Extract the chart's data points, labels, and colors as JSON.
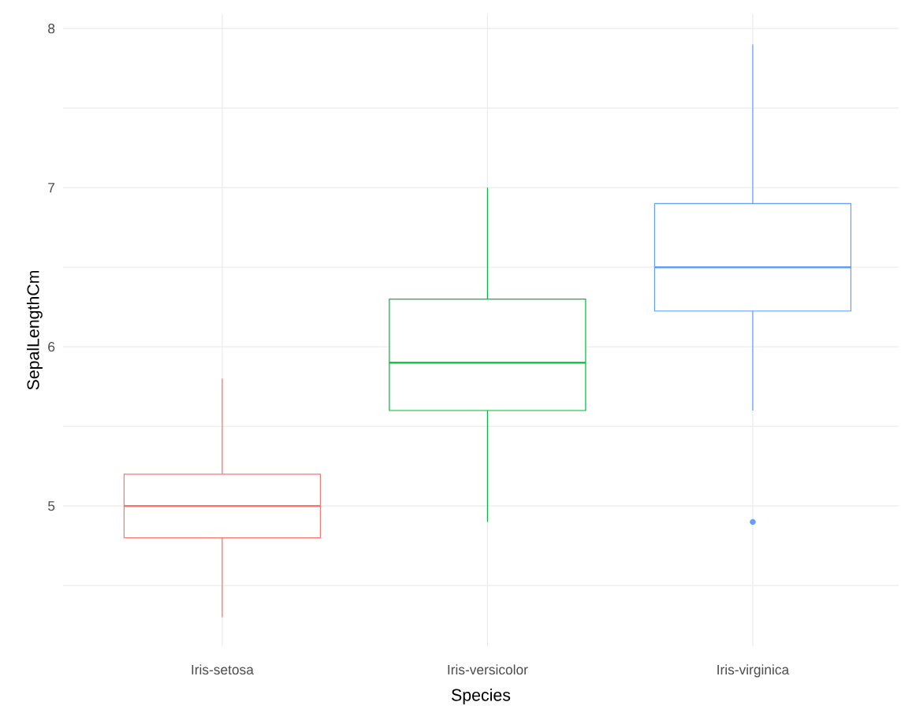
{
  "chart_data": {
    "type": "box",
    "xlabel": "Species",
    "ylabel": "SepalLengthCm",
    "categories": [
      "Iris-setosa",
      "Iris-versicolor",
      "Iris-virginica"
    ],
    "colors": [
      "#f8766d",
      "#00ba38",
      "#619cff"
    ],
    "boxes": [
      {
        "low": 4.3,
        "q1": 4.8,
        "median": 5.0,
        "q3": 5.2,
        "high": 5.8
      },
      {
        "low": 4.9,
        "q1": 5.6,
        "median": 5.9,
        "q3": 6.3,
        "high": 7.0
      },
      {
        "low": 5.6,
        "q1": 6.225,
        "median": 6.5,
        "q3": 6.9,
        "high": 7.9,
        "outliers": [
          4.9
        ]
      }
    ],
    "ylim": [
      4.12,
      8.09
    ],
    "yticks": [
      {
        "value": 4.5,
        "label": null
      },
      5,
      {
        "value": 5.5,
        "label": null
      },
      6,
      {
        "value": 6.5,
        "label": null
      },
      7,
      {
        "value": 7.5,
        "label": null
      },
      8
    ],
    "grid": true
  }
}
